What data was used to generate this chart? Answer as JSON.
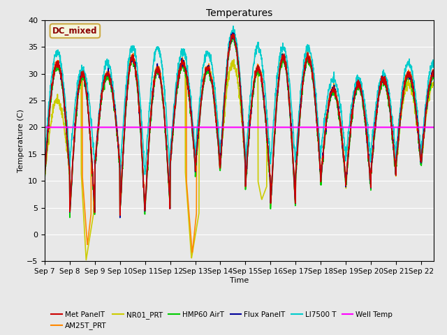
{
  "title": "Temperatures",
  "xlabel": "Time",
  "ylabel": "Temperature (C)",
  "ylim": [
    -5,
    40
  ],
  "xlim": [
    0,
    15.5
  ],
  "plot_bg_color": "#e8e8e8",
  "fig_bg_color": "#e8e8e8",
  "annotation_text": "DC_mixed",
  "annotation_color": "#8B0000",
  "annotation_bg": "#f5f5dc",
  "annotation_border": "#ccaa44",
  "well_temp_value": 20.0,
  "series": {
    "Met PanelT": {
      "color": "#cc0000",
      "lw": 1.2
    },
    "AM25T_PRT": {
      "color": "#ff8800",
      "lw": 1.2
    },
    "NR01_PRT": {
      "color": "#cccc00",
      "lw": 1.2
    },
    "HMP60 AirT": {
      "color": "#00cc00",
      "lw": 1.2
    },
    "Flux PanelT": {
      "color": "#000099",
      "lw": 1.2
    },
    "LI7500 T": {
      "color": "#00cccc",
      "lw": 1.2
    },
    "Well Temp": {
      "color": "#ff00ff",
      "lw": 1.5
    }
  },
  "xtick_labels": [
    "Sep 7",
    "Sep 8",
    "Sep 9",
    "Sep 10",
    "Sep 11",
    "Sep 12",
    "Sep 13",
    "Sep 14",
    "Sep 15",
    "Sep 16",
    "Sep 17",
    "Sep 18",
    "Sep 19",
    "Sep 20",
    "Sep 21",
    "Sep 22"
  ],
  "xtick_positions": [
    0,
    1,
    2,
    3,
    4,
    5,
    6,
    7,
    8,
    9,
    10,
    11,
    12,
    13,
    14,
    15
  ],
  "ytick_positions": [
    -5,
    0,
    5,
    10,
    15,
    20,
    25,
    30,
    35,
    40
  ],
  "grid_color": "#ffffff",
  "figsize": [
    6.4,
    4.8
  ],
  "dpi": 100
}
